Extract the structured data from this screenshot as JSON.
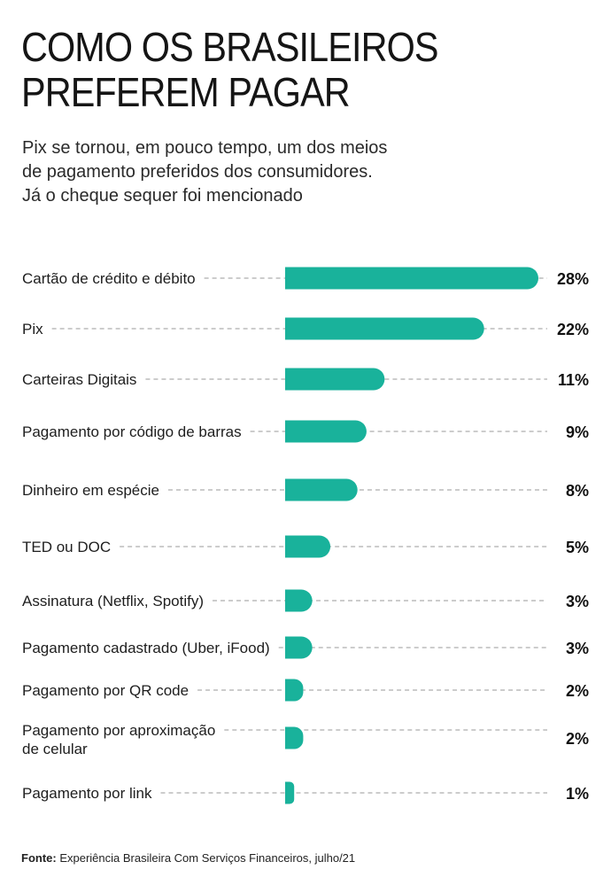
{
  "header": {
    "title_line1": "COMO OS BRASILEIROS",
    "title_line2": "PREFEREM PAGAR",
    "subtitle_line1": "Pix se tornou, em pouco tempo, um dos meios",
    "subtitle_line2": "de pagamento preferidos dos consumidores.",
    "subtitle_line3": "Já o cheque sequer foi mencionado"
  },
  "chart_data": {
    "type": "bar",
    "orientation": "horizontal",
    "title": "COMO OS BRASILEIROS PREFEREM PAGAR",
    "unit": "%",
    "categories": [
      [
        "Cartão de crédito e débito"
      ],
      [
        "Pix"
      ],
      [
        "Carteiras Digitais"
      ],
      [
        "Pagamento por código de barras"
      ],
      [
        "Dinheiro em espécie"
      ],
      [
        "TED ou DOC"
      ],
      [
        "Assinatura (Netflix, Spotify)"
      ],
      [
        "Pagamento cadastrado (Uber, iFood)"
      ],
      [
        "Pagamento por QR code"
      ],
      [
        "Pagamento por aproximação",
        "de celular"
      ],
      [
        "Pagamento por link"
      ]
    ],
    "values": [
      28,
      22,
      11,
      9,
      8,
      5,
      3,
      3,
      2,
      2,
      1
    ],
    "value_labels": [
      "28%",
      "22%",
      "11%",
      "9%",
      "8%",
      "5%",
      "3%",
      "3%",
      "2%",
      "2%",
      "1%"
    ],
    "xlim": [
      0,
      28
    ],
    "bar_color": "#19b29b",
    "guide_color": "#9a9a9a"
  },
  "source": {
    "label": "Fonte:",
    "text": " Experiência Brasileira Com Serviços Financeiros, julho/21"
  }
}
